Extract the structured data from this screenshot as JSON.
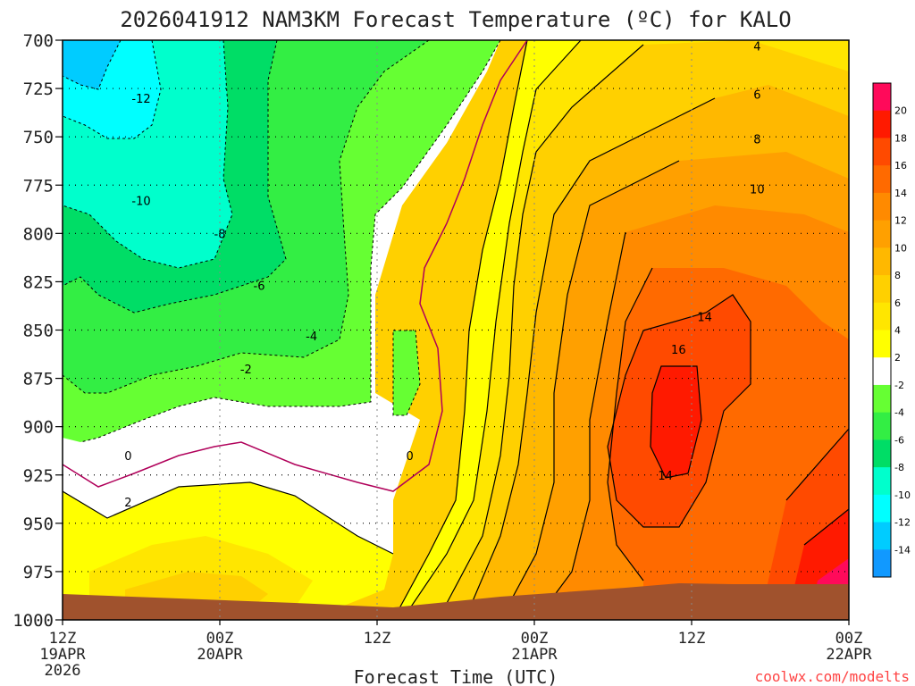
{
  "chart_data": {
    "type": "heatmap",
    "title": "2026041912 NAM3KM Forecast Temperature (ºC) for KALO",
    "xlabel": "Forecast Time (UTC)",
    "ylabel": "",
    "credit": "coolwx.com/modelts",
    "y_ticks": [
      "700",
      "725",
      "750",
      "775",
      "800",
      "825",
      "850",
      "875",
      "900",
      "925",
      "950",
      "975",
      "1000"
    ],
    "y_values": [
      700,
      725,
      750,
      775,
      800,
      825,
      850,
      875,
      900,
      925,
      950,
      975,
      1000
    ],
    "ylim": [
      1000,
      700
    ],
    "x_ticks": [
      {
        "hour": 0,
        "lines": [
          "12Z",
          "19APR",
          "2026"
        ]
      },
      {
        "hour": 12,
        "lines": [
          "00Z",
          "20APR"
        ]
      },
      {
        "hour": 24,
        "lines": [
          "12Z"
        ]
      },
      {
        "hour": 36,
        "lines": [
          "00Z",
          "21APR"
        ]
      },
      {
        "hour": 48,
        "lines": [
          "12Z"
        ]
      },
      {
        "hour": 60,
        "lines": [
          "00Z",
          "22APR"
        ]
      }
    ],
    "xlim": [
      0,
      60
    ],
    "colorbar": {
      "labels": [
        "20",
        "18",
        "16",
        "14",
        "12",
        "10",
        "8",
        "6",
        "4",
        "2",
        "-2",
        "-4",
        "-6",
        "-8",
        "-10",
        "-12",
        "-14"
      ],
      "colors": [
        "#ff0a5a",
        "#ff1a00",
        "#ff4a00",
        "#ff6a00",
        "#ff8a00",
        "#ffa000",
        "#ffb800",
        "#ffd000",
        "#ffe600",
        "#ffff00",
        "#ffffff",
        "#66ff33",
        "#33ee44",
        "#00dd66",
        "#00ffcc",
        "#00ffff",
        "#00ccff",
        "#1199ff"
      ]
    },
    "contour_labels": [
      {
        "text": "-12",
        "hour": 6.0,
        "p": 730
      },
      {
        "text": "-10",
        "hour": 6.0,
        "p": 783
      },
      {
        "text": "-8",
        "hour": 12.0,
        "p": 800
      },
      {
        "text": "-6",
        "hour": 15.0,
        "p": 827
      },
      {
        "text": "-4",
        "hour": 19.0,
        "p": 853
      },
      {
        "text": "-2",
        "hour": 14.0,
        "p": 870
      },
      {
        "text": "0",
        "hour": 5.0,
        "p": 915
      },
      {
        "text": "0",
        "hour": 26.5,
        "p": 915
      },
      {
        "text": "2",
        "hour": 5.0,
        "p": 939
      },
      {
        "text": "4",
        "hour": 53.0,
        "p": 703
      },
      {
        "text": "6",
        "hour": 53.0,
        "p": 728
      },
      {
        "text": "8",
        "hour": 53.0,
        "p": 751
      },
      {
        "text": "10",
        "hour": 53.0,
        "p": 777
      },
      {
        "text": "14",
        "hour": 49.0,
        "p": 843
      },
      {
        "text": "16",
        "hour": 47.0,
        "p": 860
      },
      {
        "text": "14",
        "hour": 46.0,
        "p": 925
      }
    ],
    "grid": true,
    "surface_color": "#a0522d"
  }
}
